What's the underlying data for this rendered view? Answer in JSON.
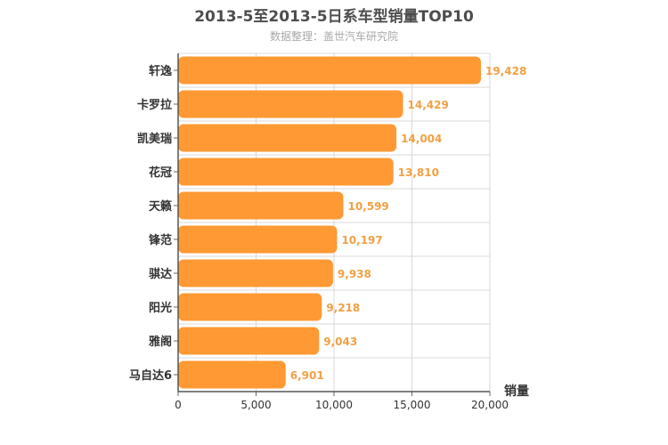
{
  "chart_data": {
    "type": "bar",
    "orientation": "horizontal",
    "title": "2013-5至2013-5日系车型销量TOP10",
    "subtitle": "数据整理：盖世汽车研究院",
    "xlabel": "销量",
    "xlim": [
      0,
      20000
    ],
    "xticks": [
      "0",
      "5,000",
      "10,000",
      "15,000",
      "20,000"
    ],
    "grid": true,
    "bar_color": "#ff9933",
    "label_color": "#f2a044",
    "categories": [
      "轩逸",
      "卡罗拉",
      "凯美瑞",
      "花冠",
      "天籁",
      "锋范",
      "骐达",
      "阳光",
      "雅阁",
      "马自达6"
    ],
    "values": [
      19428,
      14429,
      14004,
      13810,
      10599,
      10197,
      9938,
      9218,
      9043,
      6901
    ],
    "value_labels": [
      "19,428",
      "14,429",
      "14,004",
      "13,810",
      "10,599",
      "10,197",
      "9,938",
      "9,218",
      "9,043",
      "6,901"
    ]
  }
}
